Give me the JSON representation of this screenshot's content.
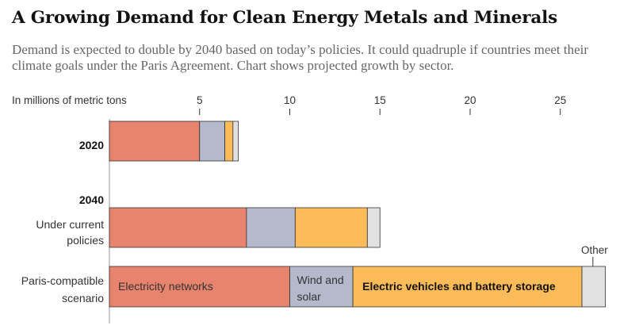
{
  "title": "A Growing Demand for Clean Energy Metals and Minerals",
  "subtitle": "Demand is expected to double by 2040 based on today’s policies. It could quadruple if countries meet their climate goals under the Paris Agreement. Chart shows projected growth by sector.",
  "chart_data": {
    "type": "bar",
    "orientation": "horizontal",
    "stacked": true,
    "units_label": "In millions of metric tons",
    "xlim": [
      0,
      27.5
    ],
    "xticks": [
      5,
      10,
      15,
      20,
      25
    ],
    "groups": [
      {
        "label": "2020",
        "bold": true,
        "rows": [
          {
            "label": "",
            "segments": [
              5.0,
              1.4,
              0.45,
              0.3
            ]
          }
        ]
      },
      {
        "label": "2040",
        "bold": true,
        "rows": [
          {
            "label": "Under current policies",
            "segments": [
              7.6,
              2.7,
              4.0,
              0.7
            ]
          },
          {
            "label": "Paris-compatible scenario",
            "segments": [
              10.0,
              3.5,
              12.7,
              1.3
            ]
          }
        ]
      }
    ],
    "series": [
      {
        "name": "Electricity networks",
        "color": "#e8836e"
      },
      {
        "name": "Wind and solar",
        "color": "#b4b9cc"
      },
      {
        "name": "Electric vehicles and battery storage",
        "color": "#fbbb59"
      },
      {
        "name": "Other",
        "color": "#e1e1e1"
      }
    ]
  }
}
